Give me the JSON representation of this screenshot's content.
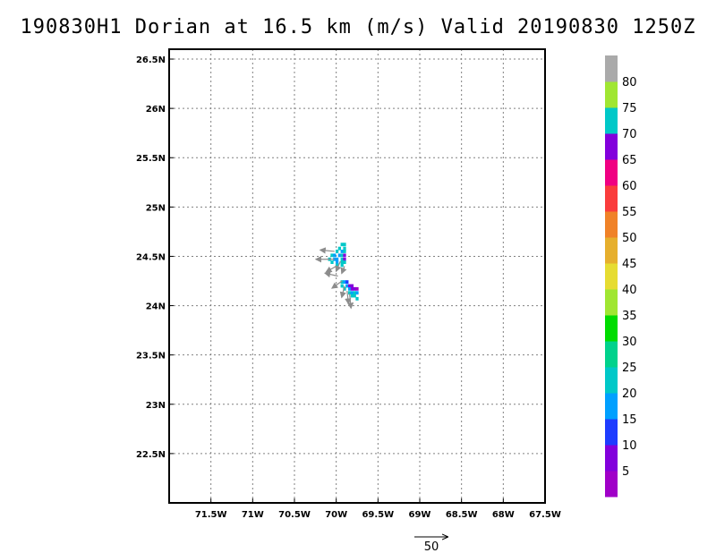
{
  "title": "190830H1 Dorian at 16.5 km (m/s) Valid 20190830  1250Z",
  "map": {
    "lon_range": [
      -72.0,
      -67.5
    ],
    "lat_range": [
      22.0,
      26.6
    ],
    "lon_ticks": [
      {
        "value": -71.5,
        "label": "71.5W"
      },
      {
        "value": -71.0,
        "label": "71W"
      },
      {
        "value": -70.5,
        "label": "70.5W"
      },
      {
        "value": -70.0,
        "label": "70W"
      },
      {
        "value": -69.5,
        "label": "69.5W"
      },
      {
        "value": -69.0,
        "label": "69W"
      },
      {
        "value": -68.5,
        "label": "68.5W"
      },
      {
        "value": -68.0,
        "label": "68W"
      },
      {
        "value": -67.5,
        "label": "67.5W"
      }
    ],
    "lat_ticks": [
      {
        "value": 22.5,
        "label": "22.5N"
      },
      {
        "value": 23.0,
        "label": "23N"
      },
      {
        "value": 23.5,
        "label": "23.5N"
      },
      {
        "value": 24.0,
        "label": "24N"
      },
      {
        "value": 24.5,
        "label": "24.5N"
      },
      {
        "value": 25.0,
        "label": "25N"
      },
      {
        "value": 25.5,
        "label": "25.5N"
      },
      {
        "value": 26.0,
        "label": "26N"
      },
      {
        "value": 26.5,
        "label": "26.5N"
      }
    ],
    "grid": true
  },
  "colorbar": {
    "colors": [
      "#a000c8",
      "#8200dc",
      "#1e3cff",
      "#00a0ff",
      "#00c8c8",
      "#00d28c",
      "#00dc00",
      "#a0e632",
      "#e6dc32",
      "#e6af2d",
      "#f08228",
      "#fa3c3c",
      "#f00082",
      "#8200dc",
      "#00c8c8",
      "#a0e632",
      "#aaaaaa"
    ],
    "labels": [
      "5",
      "10",
      "15",
      "20",
      "25",
      "30",
      "35",
      "40",
      "45",
      "50",
      "55",
      "60",
      "65",
      "70",
      "75",
      "80"
    ]
  },
  "wind_field": {
    "cells": [
      {
        "lon": -69.9,
        "lat": 24.62,
        "color": "#00c8c8"
      },
      {
        "lon": -69.93,
        "lat": 24.62,
        "color": "#00c8c8"
      },
      {
        "lon": -69.96,
        "lat": 24.58,
        "color": "#00c8c8"
      },
      {
        "lon": -69.9,
        "lat": 24.58,
        "color": "#00c8c8"
      },
      {
        "lon": -69.99,
        "lat": 24.55,
        "color": "#00c8c8"
      },
      {
        "lon": -69.93,
        "lat": 24.55,
        "color": "#00a0ff"
      },
      {
        "lon": -69.9,
        "lat": 24.55,
        "color": "#00c8c8"
      },
      {
        "lon": -70.05,
        "lat": 24.51,
        "color": "#00c8c8"
      },
      {
        "lon": -70.02,
        "lat": 24.51,
        "color": "#00a0ff"
      },
      {
        "lon": -69.96,
        "lat": 24.51,
        "color": "#00a0ff"
      },
      {
        "lon": -69.93,
        "lat": 24.51,
        "color": "#00c8c8"
      },
      {
        "lon": -69.9,
        "lat": 24.51,
        "color": "#8200dc"
      },
      {
        "lon": -70.08,
        "lat": 24.47,
        "color": "#00c8c8"
      },
      {
        "lon": -70.02,
        "lat": 24.47,
        "color": "#00a0ff"
      },
      {
        "lon": -69.99,
        "lat": 24.47,
        "color": "#00a0ff"
      },
      {
        "lon": -69.93,
        "lat": 24.47,
        "color": "#00c8c8"
      },
      {
        "lon": -69.9,
        "lat": 24.47,
        "color": "#8200dc"
      },
      {
        "lon": -70.05,
        "lat": 24.44,
        "color": "#00c8c8"
      },
      {
        "lon": -69.99,
        "lat": 24.44,
        "color": "#00a0ff"
      },
      {
        "lon": -69.93,
        "lat": 24.44,
        "color": "#00c8c8"
      },
      {
        "lon": -69.9,
        "lat": 24.44,
        "color": "#00c8c8"
      },
      {
        "lon": -69.99,
        "lat": 24.41,
        "color": "#00c8c8"
      },
      {
        "lon": -69.93,
        "lat": 24.41,
        "color": "#00c8c8"
      },
      {
        "lon": -69.93,
        "lat": 24.24,
        "color": "#00c8c8"
      },
      {
        "lon": -69.9,
        "lat": 24.24,
        "color": "#00a0ff"
      },
      {
        "lon": -69.87,
        "lat": 24.24,
        "color": "#1e3cff"
      },
      {
        "lon": -69.93,
        "lat": 24.2,
        "color": "#00c8c8"
      },
      {
        "lon": -69.87,
        "lat": 24.2,
        "color": "#00a0ff"
      },
      {
        "lon": -69.84,
        "lat": 24.2,
        "color": "#8200dc"
      },
      {
        "lon": -69.81,
        "lat": 24.2,
        "color": "#8200dc"
      },
      {
        "lon": -69.9,
        "lat": 24.17,
        "color": "#00c8c8"
      },
      {
        "lon": -69.84,
        "lat": 24.17,
        "color": "#00a0ff"
      },
      {
        "lon": -69.81,
        "lat": 24.17,
        "color": "#8200dc"
      },
      {
        "lon": -69.78,
        "lat": 24.17,
        "color": "#8200dc"
      },
      {
        "lon": -69.75,
        "lat": 24.17,
        "color": "#a000c8"
      },
      {
        "lon": -69.84,
        "lat": 24.13,
        "color": "#00c8c8"
      },
      {
        "lon": -69.81,
        "lat": 24.13,
        "color": "#00a0ff"
      },
      {
        "lon": -69.78,
        "lat": 24.13,
        "color": "#00c8c8"
      },
      {
        "lon": -69.75,
        "lat": 24.13,
        "color": "#00a0ff"
      },
      {
        "lon": -69.81,
        "lat": 24.1,
        "color": "#00c8c8"
      },
      {
        "lon": -69.78,
        "lat": 24.1,
        "color": "#00c8c8"
      },
      {
        "lon": -69.75,
        "lat": 24.07,
        "color": "#00c8c8"
      }
    ],
    "vectors": [
      {
        "lon": -70.02,
        "lat": 24.55,
        "u": -20,
        "v": 2
      },
      {
        "lon": -70.02,
        "lat": 24.47,
        "u": -26,
        "v": 0
      },
      {
        "lon": -70.0,
        "lat": 24.4,
        "u": -14,
        "v": -8
      },
      {
        "lon": -69.95,
        "lat": 24.45,
        "u": -6,
        "v": -14
      },
      {
        "lon": -69.9,
        "lat": 24.4,
        "u": -4,
        "v": -10
      },
      {
        "lon": -69.98,
        "lat": 24.3,
        "u": -18,
        "v": 4
      },
      {
        "lon": -69.93,
        "lat": 24.25,
        "u": -14,
        "v": -10
      },
      {
        "lon": -69.9,
        "lat": 24.2,
        "u": -4,
        "v": -16
      },
      {
        "lon": -69.87,
        "lat": 24.15,
        "u": 2,
        "v": -18
      },
      {
        "lon": -69.84,
        "lat": 24.12,
        "u": 2,
        "v": -20
      }
    ]
  },
  "reference_vector": {
    "label": "50",
    "magnitude": 50
  }
}
